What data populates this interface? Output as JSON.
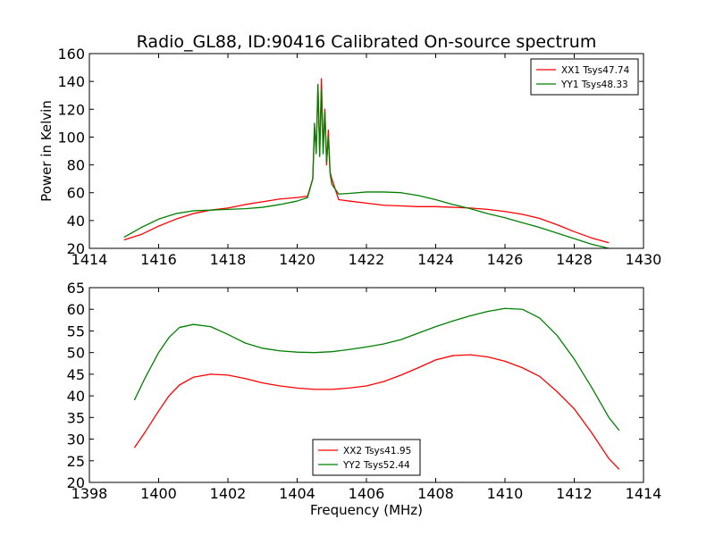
{
  "chart_data": [
    {
      "type": "line",
      "title": "Radio_GL88, ID:90416 Calibrated On-source spectrum",
      "xlabel": "",
      "ylabel": "Power in Kelvin",
      "xlim": [
        1414,
        1430
      ],
      "ylim": [
        20,
        160
      ],
      "xticks": [
        1414,
        1416,
        1418,
        1420,
        1422,
        1424,
        1426,
        1428,
        1430
      ],
      "yticks": [
        20,
        40,
        60,
        80,
        100,
        120,
        140,
        160
      ],
      "legend_position": "top-right",
      "grid": false,
      "series": [
        {
          "name": "XX1 Tsys47.74",
          "color": "#ff0000",
          "x": [
            1415,
            1415.5,
            1416,
            1416.5,
            1417,
            1417.5,
            1418,
            1418.5,
            1419,
            1419.5,
            1420,
            1420.3,
            1420.45,
            1420.5,
            1420.55,
            1420.6,
            1420.65,
            1420.7,
            1420.75,
            1420.8,
            1420.85,
            1420.9,
            1420.95,
            1421,
            1421.2,
            1421.5,
            1422,
            1422.5,
            1423,
            1423.5,
            1424,
            1424.5,
            1425,
            1425.5,
            1426,
            1426.5,
            1427,
            1427.5,
            1428,
            1428.5,
            1429
          ],
          "y": [
            26,
            30,
            36,
            41,
            45,
            47.5,
            49,
            51.5,
            53.5,
            55.5,
            56.5,
            57.5,
            70,
            105,
            92,
            137,
            88,
            142,
            92,
            120,
            80,
            105,
            75,
            70,
            55,
            54,
            52.5,
            51,
            50.5,
            50,
            50,
            49.5,
            49,
            48,
            46.5,
            44.5,
            41.5,
            37,
            32,
            27.5,
            24
          ]
        },
        {
          "name": "YY1 Tsys48.33",
          "color": "#008000",
          "x": [
            1415,
            1415.5,
            1416,
            1416.5,
            1417,
            1417.5,
            1418,
            1418.5,
            1419,
            1419.5,
            1420,
            1420.3,
            1420.45,
            1420.5,
            1420.55,
            1420.6,
            1420.65,
            1420.7,
            1420.75,
            1420.8,
            1420.85,
            1420.9,
            1420.95,
            1421,
            1421.2,
            1421.5,
            1422,
            1422.5,
            1423,
            1423.5,
            1424,
            1424.5,
            1425,
            1425.5,
            1426,
            1426.5,
            1427,
            1427.5,
            1428,
            1428.5,
            1429
          ],
          "y": [
            28,
            35,
            41,
            45,
            47,
            47.5,
            48,
            48.5,
            49.5,
            51.5,
            54,
            56.5,
            70,
            110,
            88,
            138,
            86,
            134,
            88,
            118,
            82,
            100,
            74,
            66,
            59,
            59.5,
            60.5,
            60.5,
            60,
            58,
            55,
            51.5,
            48.5,
            45,
            42,
            38.5,
            35,
            31,
            27,
            23,
            20
          ]
        }
      ]
    },
    {
      "type": "line",
      "title": "",
      "xlabel": "Frequency (MHz)",
      "ylabel": "",
      "xlim": [
        1398,
        1414
      ],
      "ylim": [
        20,
        65
      ],
      "xticks": [
        1398,
        1400,
        1402,
        1404,
        1406,
        1408,
        1410,
        1412,
        1414
      ],
      "yticks": [
        20,
        25,
        30,
        35,
        40,
        45,
        50,
        55,
        60,
        65
      ],
      "legend_position": "bottom-center",
      "grid": false,
      "series": [
        {
          "name": "XX2 Tsys41.95",
          "color": "#ff0000",
          "x": [
            1399.3,
            1399.6,
            1400,
            1400.3,
            1400.6,
            1401,
            1401.5,
            1402,
            1402.5,
            1403,
            1403.5,
            1404,
            1404.5,
            1405,
            1405.5,
            1406,
            1406.5,
            1407,
            1407.5,
            1408,
            1408.5,
            1409,
            1409.5,
            1410,
            1410.5,
            1411,
            1411.5,
            1412,
            1412.5,
            1413,
            1413.3
          ],
          "y": [
            28,
            31.5,
            36.5,
            40,
            42.5,
            44.3,
            45,
            44.8,
            44,
            43,
            42.3,
            41.8,
            41.5,
            41.5,
            41.8,
            42.3,
            43.3,
            44.8,
            46.5,
            48.3,
            49.3,
            49.5,
            49,
            48,
            46.5,
            44.5,
            41,
            37,
            31.5,
            25.5,
            23
          ]
        },
        {
          "name": "YY2 Tsys52.44",
          "color": "#008000",
          "x": [
            1399.3,
            1399.6,
            1400,
            1400.3,
            1400.6,
            1401,
            1401.5,
            1402,
            1402.5,
            1403,
            1403.5,
            1404,
            1404.5,
            1405,
            1405.5,
            1406,
            1406.5,
            1407,
            1407.5,
            1408,
            1408.5,
            1409,
            1409.5,
            1410,
            1410.5,
            1411,
            1411.5,
            1412,
            1412.5,
            1413,
            1413.3
          ],
          "y": [
            39,
            44,
            50,
            53.5,
            55.8,
            56.5,
            56,
            54.2,
            52.2,
            51,
            50.4,
            50.1,
            50,
            50.2,
            50.7,
            51.3,
            52,
            53,
            54.5,
            56,
            57.3,
            58.5,
            59.5,
            60.2,
            60,
            58,
            54,
            48.5,
            42,
            35,
            32
          ]
        }
      ]
    }
  ]
}
